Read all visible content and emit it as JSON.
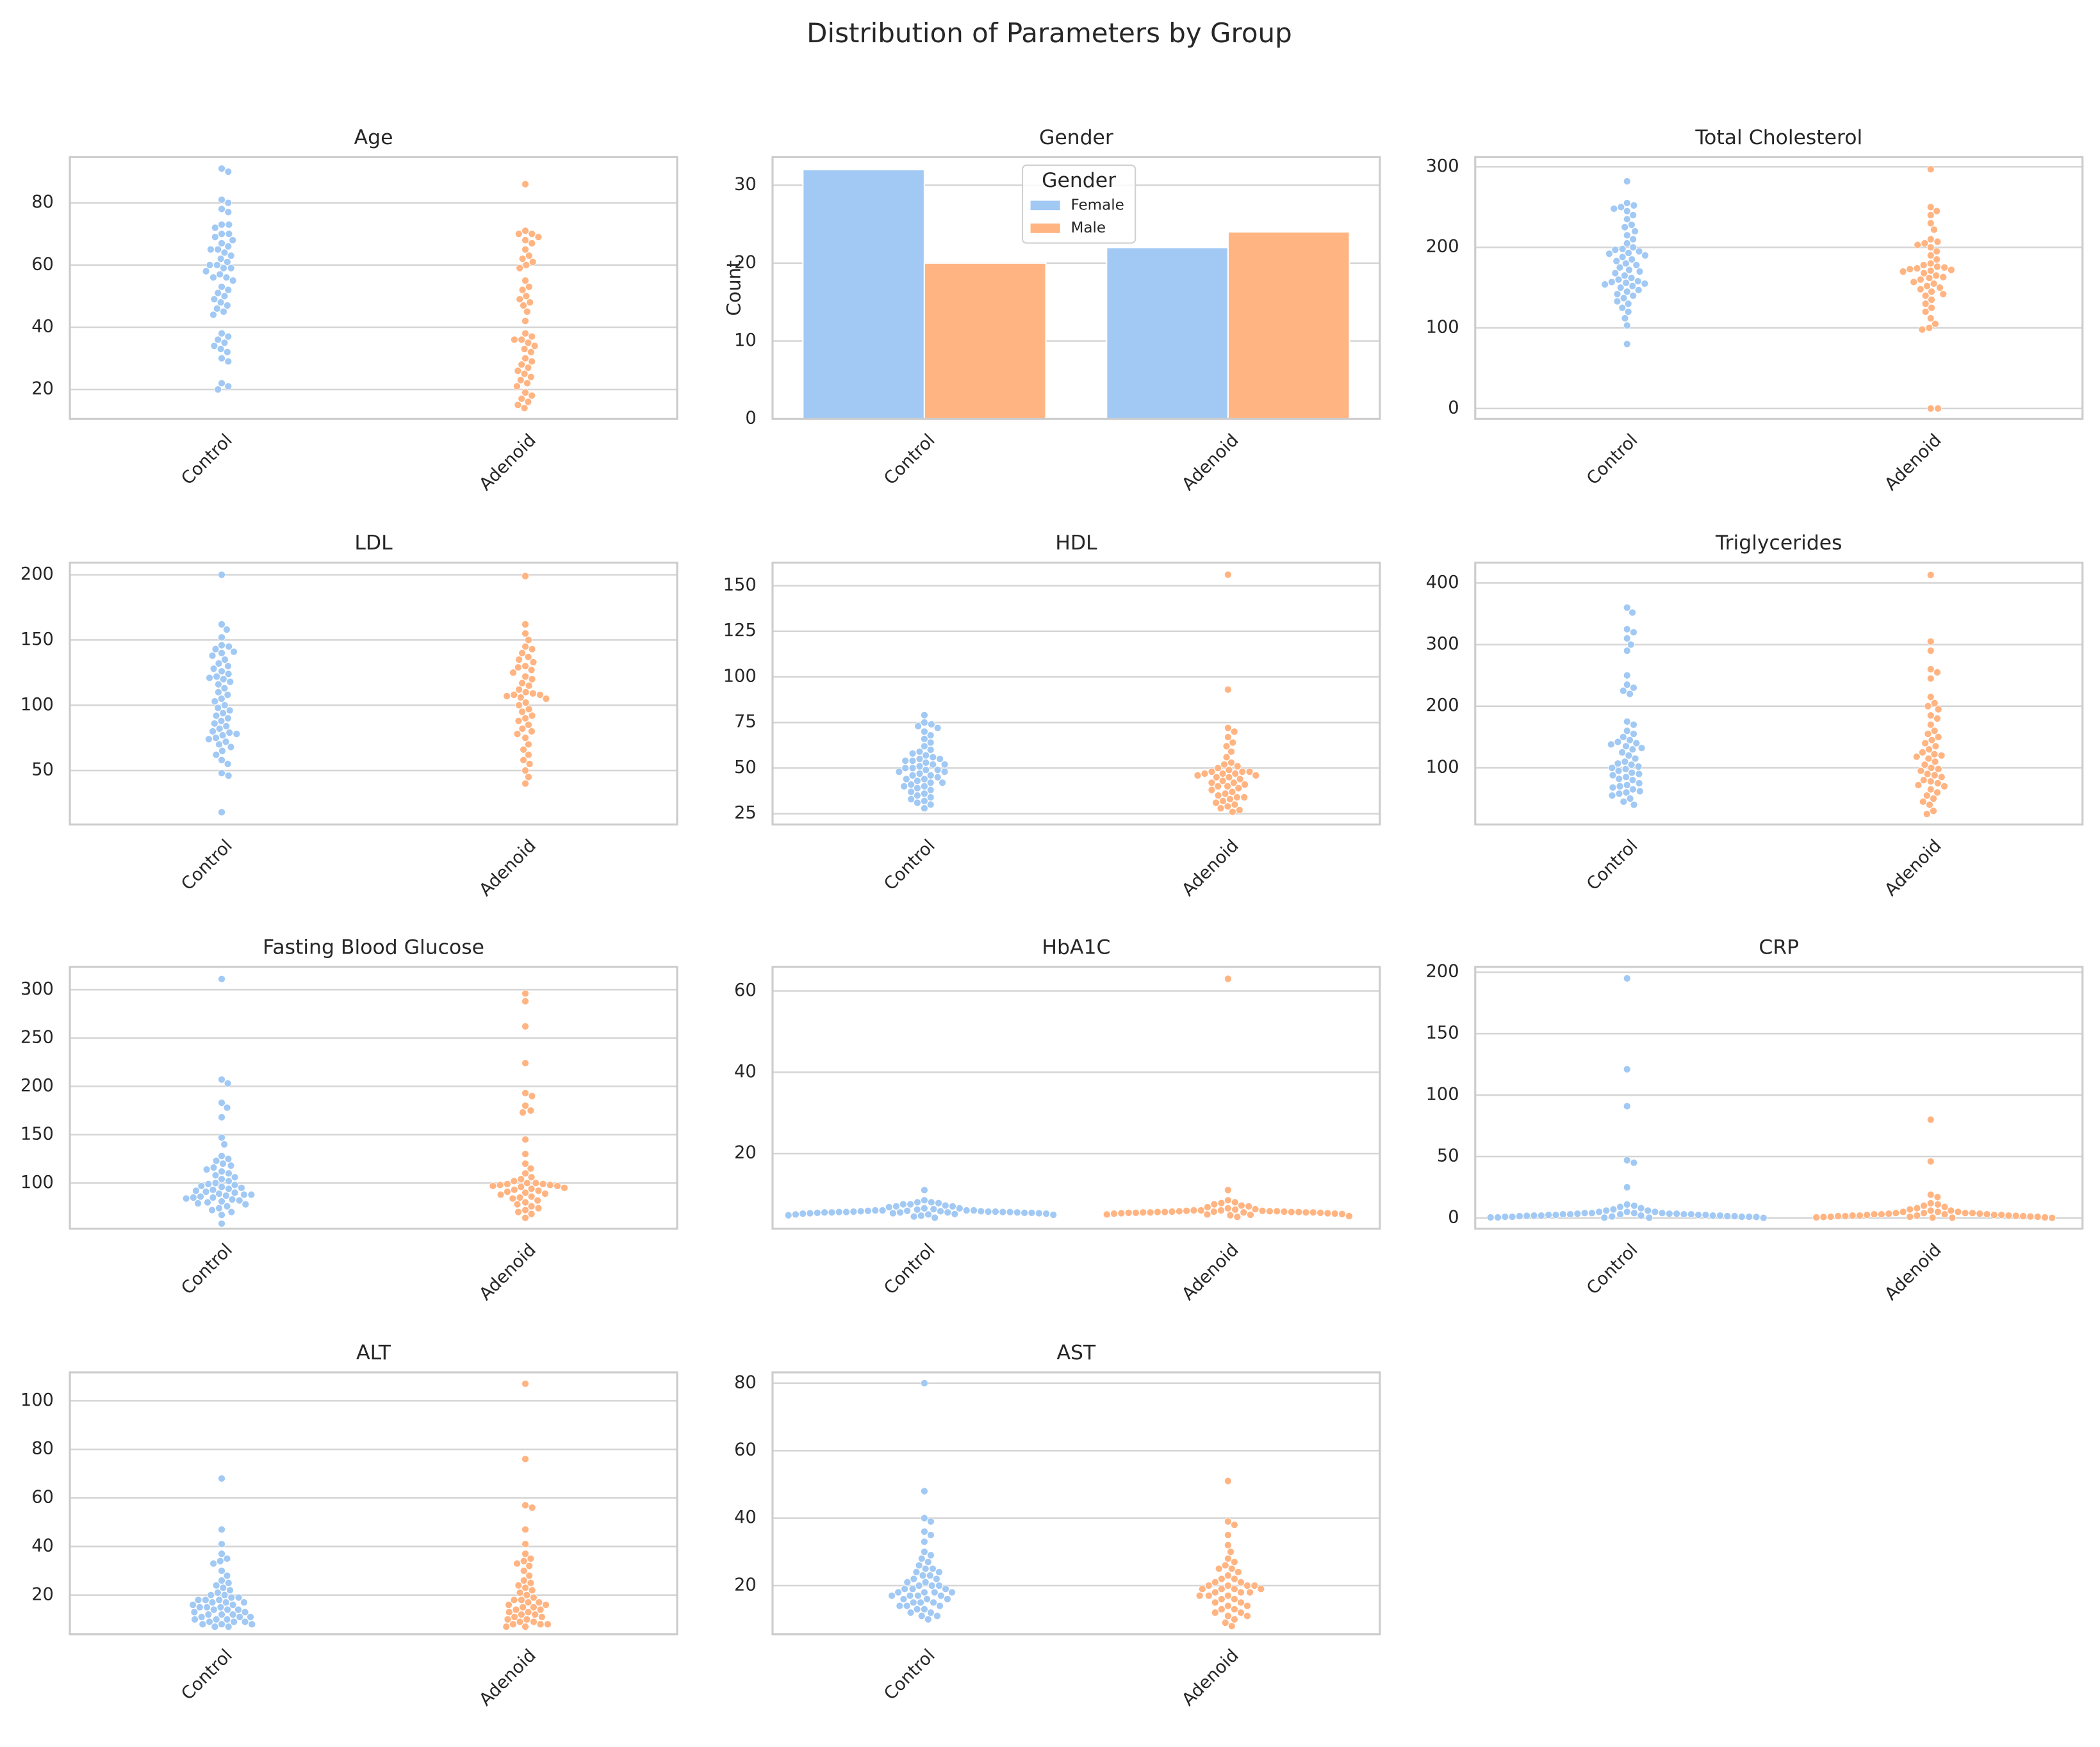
{
  "title": "Distribution of Parameters by Group",
  "chart_data": [
    {
      "type": "swarm",
      "title": "Age",
      "categories": [
        "Control",
        "Adenoid"
      ],
      "colors": [
        "#a1c9f4",
        "#ffb482"
      ],
      "ylim": [
        10.5,
        94.7
      ],
      "yticks": [
        20,
        40,
        60,
        80
      ],
      "grid": "y",
      "values": [
        [
          91,
          90,
          81,
          80,
          78,
          77,
          73,
          73,
          72,
          70,
          70,
          69,
          68,
          67,
          66,
          65,
          65,
          64,
          63,
          62,
          61,
          60,
          60,
          59,
          59,
          58,
          57,
          56,
          56,
          55,
          53,
          52,
          51,
          50,
          49,
          48,
          47,
          46,
          45,
          44,
          38,
          37,
          36,
          35,
          34,
          33,
          32,
          30,
          29,
          22,
          21,
          20
        ],
        [
          86,
          71,
          70,
          70,
          69,
          68,
          67,
          65,
          63,
          62,
          61,
          60,
          59,
          55,
          53,
          52,
          50,
          49,
          48,
          47,
          45,
          42,
          38,
          37,
          36,
          36,
          35,
          34,
          33,
          32,
          30,
          28,
          27,
          26,
          25,
          24,
          23,
          22,
          21,
          19,
          18,
          17,
          16,
          15,
          14,
          29
        ]
      ]
    },
    {
      "type": "bar",
      "title": "Gender",
      "categories": [
        "Control",
        "Adenoid"
      ],
      "ylabel": "Count",
      "ylim": [
        0,
        33.6
      ],
      "yticks": [
        0,
        10,
        20,
        30
      ],
      "grid": "y",
      "legend_title": "Gender",
      "legend": "upper center",
      "series": [
        {
          "name": "Female",
          "color": "#a1c9f4",
          "values": [
            32,
            22
          ]
        },
        {
          "name": "Male",
          "color": "#ffb482",
          "values": [
            20,
            24
          ]
        }
      ]
    },
    {
      "type": "swarm",
      "title": "Total Cholesterol",
      "categories": [
        "Control",
        "Adenoid"
      ],
      "colors": [
        "#a1c9f4",
        "#ffb482"
      ],
      "ylim": [
        -13,
        312
      ],
      "yticks": [
        0,
        100,
        200,
        300
      ],
      "grid": "y",
      "values": [
        [
          282,
          255,
          252,
          250,
          248,
          245,
          240,
          235,
          228,
          225,
          220,
          215,
          210,
          205,
          200,
          198,
          197,
          195,
          193,
          192,
          190,
          188,
          185,
          183,
          180,
          178,
          175,
          172,
          170,
          168,
          165,
          162,
          160,
          158,
          157,
          156,
          155,
          154,
          152,
          150,
          147,
          145,
          142,
          140,
          137,
          133,
          130,
          125,
          120,
          112,
          103,
          80
        ],
        [
          297,
          250,
          245,
          240,
          230,
          222,
          210,
          207,
          205,
          203,
          200,
          195,
          190,
          185,
          180,
          176,
          175,
          174,
          173,
          172,
          171,
          170,
          168,
          165,
          162,
          160,
          157,
          155,
          152,
          150,
          148,
          145,
          142,
          140,
          135,
          130,
          125,
          120,
          112,
          105,
          100,
          98,
          0,
          0,
          178,
          163
        ]
      ]
    },
    {
      "type": "swarm",
      "title": "LDL",
      "categories": [
        "Control",
        "Adenoid"
      ],
      "colors": [
        "#a1c9f4",
        "#ffb482"
      ],
      "ylim": [
        8.6,
        209.3
      ],
      "yticks": [
        50,
        100,
        150,
        200
      ],
      "grid": "y",
      "values": [
        [
          200,
          162,
          158,
          152,
          146,
          145,
          143,
          140,
          138,
          135,
          132,
          130,
          128,
          126,
          124,
          122,
          120,
          118,
          116,
          113,
          110,
          108,
          105,
          103,
          100,
          98,
          96,
          94,
          92,
          90,
          88,
          86,
          84,
          82,
          80,
          79,
          78,
          77,
          75,
          74,
          72,
          70,
          68,
          65,
          62,
          58,
          55,
          48,
          46,
          18,
          141,
          121
        ],
        [
          199,
          162,
          155,
          150,
          145,
          143,
          140,
          137,
          135,
          133,
          130,
          127,
          125,
          122,
          120,
          117,
          115,
          112,
          110,
          109,
          108,
          108,
          107,
          106,
          105,
          102,
          100,
          97,
          95,
          92,
          90,
          88,
          85,
          82,
          80,
          78,
          75,
          70,
          66,
          62,
          58,
          55,
          50,
          45,
          40,
          129
        ]
      ]
    },
    {
      "type": "swarm",
      "title": "HDL",
      "categories": [
        "Control",
        "Adenoid"
      ],
      "colors": [
        "#a1c9f4",
        "#ffb482"
      ],
      "ylim": [
        19.1,
        162.6
      ],
      "yticks": [
        25,
        50,
        75,
        100,
        125,
        150
      ],
      "grid": "y",
      "values": [
        [
          79,
          75,
          74,
          73,
          72,
          70,
          68,
          66,
          64,
          62,
          60,
          59,
          58,
          57,
          56,
          55,
          55,
          54,
          54,
          53,
          52,
          52,
          51,
          50,
          50,
          49,
          49,
          48,
          48,
          47,
          46,
          46,
          45,
          44,
          44,
          43,
          42,
          42,
          41,
          40,
          40,
          39,
          38,
          37,
          36,
          35,
          34,
          33,
          32,
          31,
          30,
          28
        ],
        [
          156,
          93,
          72,
          70,
          67,
          64,
          62,
          59,
          56,
          53,
          52,
          51,
          50,
          49,
          48,
          48,
          48,
          47,
          47,
          47,
          46,
          46,
          45,
          45,
          44,
          43,
          42,
          41,
          40,
          40,
          39,
          38,
          37,
          36,
          35,
          34,
          33,
          32,
          31,
          30,
          29,
          28,
          27,
          26,
          34,
          42
        ]
      ]
    },
    {
      "type": "swarm",
      "title": "Triglycerides",
      "categories": [
        "Control",
        "Adenoid"
      ],
      "colors": [
        "#a1c9f4",
        "#ffb482"
      ],
      "ylim": [
        8,
        433
      ],
      "yticks": [
        100,
        200,
        300,
        400
      ],
      "grid": "y",
      "values": [
        [
          360,
          352,
          325,
          320,
          310,
          300,
          290,
          250,
          235,
          230,
          225,
          220,
          175,
          170,
          160,
          155,
          150,
          145,
          142,
          140,
          138,
          135,
          132,
          130,
          125,
          120,
          115,
          110,
          107,
          105,
          102,
          100,
          98,
          95,
          92,
          90,
          88,
          85,
          82,
          80,
          75,
          72,
          70,
          68,
          65,
          62,
          60,
          58,
          55,
          50,
          45,
          40
        ],
        [
          413,
          305,
          290,
          260,
          255,
          245,
          215,
          205,
          195,
          185,
          180,
          170,
          160,
          155,
          150,
          145,
          140,
          135,
          130,
          125,
          122,
          120,
          118,
          115,
          110,
          105,
          100,
          98,
          95,
          90,
          88,
          85,
          80,
          78,
          75,
          72,
          70,
          65,
          60,
          55,
          50,
          45,
          40,
          30,
          25,
          200
        ]
      ]
    },
    {
      "type": "swarm",
      "title": "Fasting Blood Glucose",
      "categories": [
        "Control",
        "Adenoid"
      ],
      "colors": [
        "#a1c9f4",
        "#ffb482"
      ],
      "ylim": [
        52.8,
        323.6
      ],
      "yticks": [
        100,
        150,
        200,
        250,
        300
      ],
      "grid": "y",
      "values": [
        [
          311,
          207,
          203,
          183,
          178,
          168,
          147,
          140,
          128,
          125,
          123,
          120,
          118,
          116,
          114,
          112,
          110,
          108,
          106,
          104,
          102,
          100,
          99,
          98,
          97,
          96,
          95,
          94,
          93,
          92,
          91,
          90,
          89,
          88,
          88,
          87,
          86,
          85,
          85,
          84,
          83,
          82,
          81,
          80,
          79,
          78,
          76,
          74,
          72,
          70,
          67,
          58
        ],
        [
          296,
          288,
          262,
          224,
          193,
          190,
          180,
          175,
          173,
          145,
          130,
          120,
          115,
          110,
          106,
          104,
          102,
          100,
          100,
          99,
          99,
          98,
          98,
          97,
          97,
          96,
          95,
          94,
          93,
          92,
          91,
          90,
          89,
          88,
          86,
          85,
          84,
          82,
          80,
          78,
          76,
          74,
          72,
          70,
          68,
          64
        ]
      ]
    },
    {
      "type": "swarm",
      "title": "HbA1C",
      "categories": [
        "Control",
        "Adenoid"
      ],
      "colors": [
        "#a1c9f4",
        "#ffb482"
      ],
      "ylim": [
        1.5,
        65.95
      ],
      "yticks": [
        20,
        40,
        60
      ],
      "grid": "y",
      "values": [
        [
          11,
          8.5,
          8,
          8,
          7.8,
          7.5,
          7.5,
          7.2,
          7,
          7,
          6.8,
          6.5,
          6.5,
          6.3,
          6.2,
          6,
          6,
          6,
          6,
          5.9,
          5.9,
          5.8,
          5.8,
          5.8,
          5.7,
          5.7,
          5.7,
          5.6,
          5.6,
          5.6,
          5.6,
          5.5,
          5.5,
          5.5,
          5.5,
          5.5,
          5.4,
          5.4,
          5.4,
          5.3,
          5.3,
          5.3,
          5.2,
          5.2,
          5.1,
          5,
          5,
          4.9,
          4.8,
          4.7,
          4.5,
          4.2
        ],
        [
          63,
          11,
          8.5,
          8,
          7.8,
          7.5,
          7.2,
          7,
          6.8,
          6.5,
          6.3,
          6.2,
          6,
          6,
          6,
          5.9,
          5.9,
          5.8,
          5.8,
          5.8,
          5.7,
          5.7,
          5.7,
          5.6,
          5.6,
          5.6,
          5.6,
          5.5,
          5.5,
          5.5,
          5.5,
          5.5,
          5.4,
          5.4,
          5.4,
          5.3,
          5.3,
          5.2,
          5.2,
          5.1,
          5,
          5,
          4.9,
          4.8,
          4.6,
          4.4
        ]
      ]
    },
    {
      "type": "swarm",
      "title": "CRP",
      "categories": [
        "Control",
        "Adenoid"
      ],
      "colors": [
        "#a1c9f4",
        "#ffb482"
      ],
      "ylim": [
        -8.7,
        204.4
      ],
      "yticks": [
        0,
        50,
        100,
        150,
        200
      ],
      "grid": "y",
      "values": [
        [
          195,
          121,
          91,
          47,
          45,
          25,
          11,
          10,
          9,
          8,
          7,
          6,
          6,
          5,
          5,
          5,
          4,
          4,
          4,
          4,
          3.5,
          3.5,
          3.5,
          3,
          3,
          3,
          3,
          3,
          2.5,
          2.5,
          2.5,
          2.5,
          2,
          2,
          2,
          2,
          2,
          1.8,
          1.5,
          1.5,
          1.5,
          1.2,
          1,
          1,
          1,
          1,
          0.8,
          0.5,
          0.5,
          0.3,
          0.2,
          0.1
        ],
        [
          80,
          46,
          19,
          17,
          12,
          11,
          10,
          9,
          8,
          7,
          6,
          6,
          5,
          5,
          5,
          4,
          4,
          4,
          4,
          3.5,
          3.5,
          3,
          3,
          3,
          3,
          2.5,
          2.5,
          2.5,
          2,
          2,
          2,
          2,
          1.8,
          1.5,
          1.5,
          1.5,
          1.2,
          1,
          1,
          1,
          0.8,
          0.5,
          0.5,
          0.3,
          0.2,
          0.1
        ]
      ]
    },
    {
      "type": "swarm",
      "title": "ALT",
      "categories": [
        "Control",
        "Adenoid"
      ],
      "colors": [
        "#a1c9f4",
        "#ffb482"
      ],
      "ylim": [
        3.9,
        111.7
      ],
      "yticks": [
        20,
        40,
        60,
        80,
        100
      ],
      "grid": "y",
      "values": [
        [
          68,
          47,
          41,
          37,
          35,
          34,
          33,
          30,
          28,
          26,
          25,
          24,
          23,
          22,
          21,
          20,
          20,
          19,
          19,
          18,
          18,
          18,
          17,
          17,
          17,
          16,
          16,
          15,
          15,
          15,
          14,
          14,
          14,
          13,
          13,
          12,
          12,
          12,
          11,
          11,
          11,
          10,
          10,
          10,
          9,
          9,
          9,
          8,
          8,
          8,
          7,
          7
        ],
        [
          107,
          76,
          57,
          56,
          47,
          41,
          37,
          35,
          34,
          33,
          32,
          30,
          28,
          26,
          25,
          24,
          23,
          22,
          21,
          20,
          19,
          18,
          18,
          17,
          17,
          16,
          16,
          15,
          15,
          14,
          14,
          13,
          13,
          12,
          12,
          11,
          11,
          10,
          10,
          9,
          9,
          8,
          8,
          8,
          7,
          7
        ]
      ]
    },
    {
      "type": "swarm",
      "title": "AST",
      "categories": [
        "Control",
        "Adenoid"
      ],
      "colors": [
        "#a1c9f4",
        "#ffb482"
      ],
      "ylim": [
        5.6,
        83.2
      ],
      "yticks": [
        20,
        40,
        60,
        80
      ],
      "grid": "y",
      "values": [
        [
          80,
          48,
          40,
          39,
          36,
          35,
          30,
          29,
          28,
          27,
          26,
          25,
          25,
          24,
          24,
          23,
          23,
          22,
          22,
          21,
          21,
          20,
          20,
          20,
          19,
          19,
          19,
          18,
          18,
          18,
          18,
          17,
          17,
          17,
          17,
          16,
          16,
          16,
          15,
          15,
          15,
          14,
          14,
          14,
          13,
          13,
          12,
          12,
          11,
          11,
          10,
          33
        ],
        [
          51,
          39,
          38,
          35,
          32,
          30,
          28,
          27,
          26,
          25,
          24,
          23,
          22,
          22,
          21,
          21,
          20,
          20,
          20,
          20,
          19,
          19,
          19,
          19,
          18,
          18,
          18,
          17,
          17,
          17,
          16,
          16,
          15,
          15,
          14,
          14,
          13,
          13,
          12,
          12,
          11,
          11,
          10,
          9,
          8,
          25
        ]
      ]
    }
  ]
}
